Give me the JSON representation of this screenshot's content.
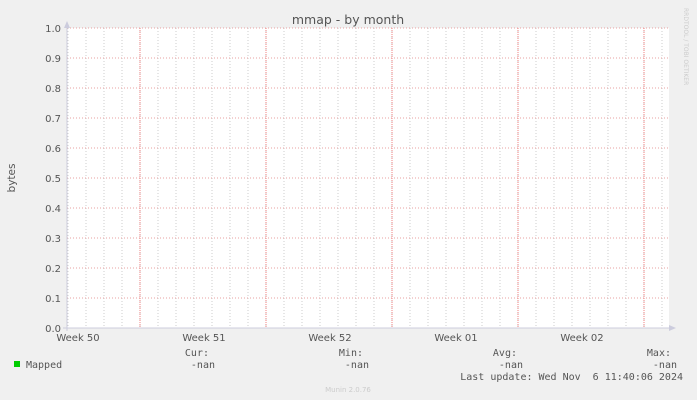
{
  "chart_data": {
    "type": "line",
    "title": "mmap - by month",
    "ylabel": "bytes",
    "ylim": [
      0,
      1.0
    ],
    "yticks": [
      "0.0",
      "0.1",
      "0.2",
      "0.3",
      "0.4",
      "0.5",
      "0.6",
      "0.7",
      "0.8",
      "0.9",
      "1.0"
    ],
    "xticks": [
      "Week 50",
      "Week 51",
      "Week 52",
      "Week 01",
      "Week 02"
    ],
    "grid": true,
    "series": [
      {
        "name": "Mapped",
        "color": "#00cc00",
        "values": []
      }
    ]
  },
  "side_label": "RRDTOOL / TOBI OETIKER",
  "legend": {
    "headers": {
      "cur": "Cur:",
      "min": "Min:",
      "avg": "Avg:",
      "max": "Max:"
    },
    "rows": [
      {
        "name": "Mapped",
        "cur": "-nan",
        "min": "-nan",
        "avg": "-nan",
        "max": "-nan"
      }
    ]
  },
  "last_update": "Last update: Wed Nov  6 11:40:06 2024",
  "footer": "Munin 2.0.76"
}
